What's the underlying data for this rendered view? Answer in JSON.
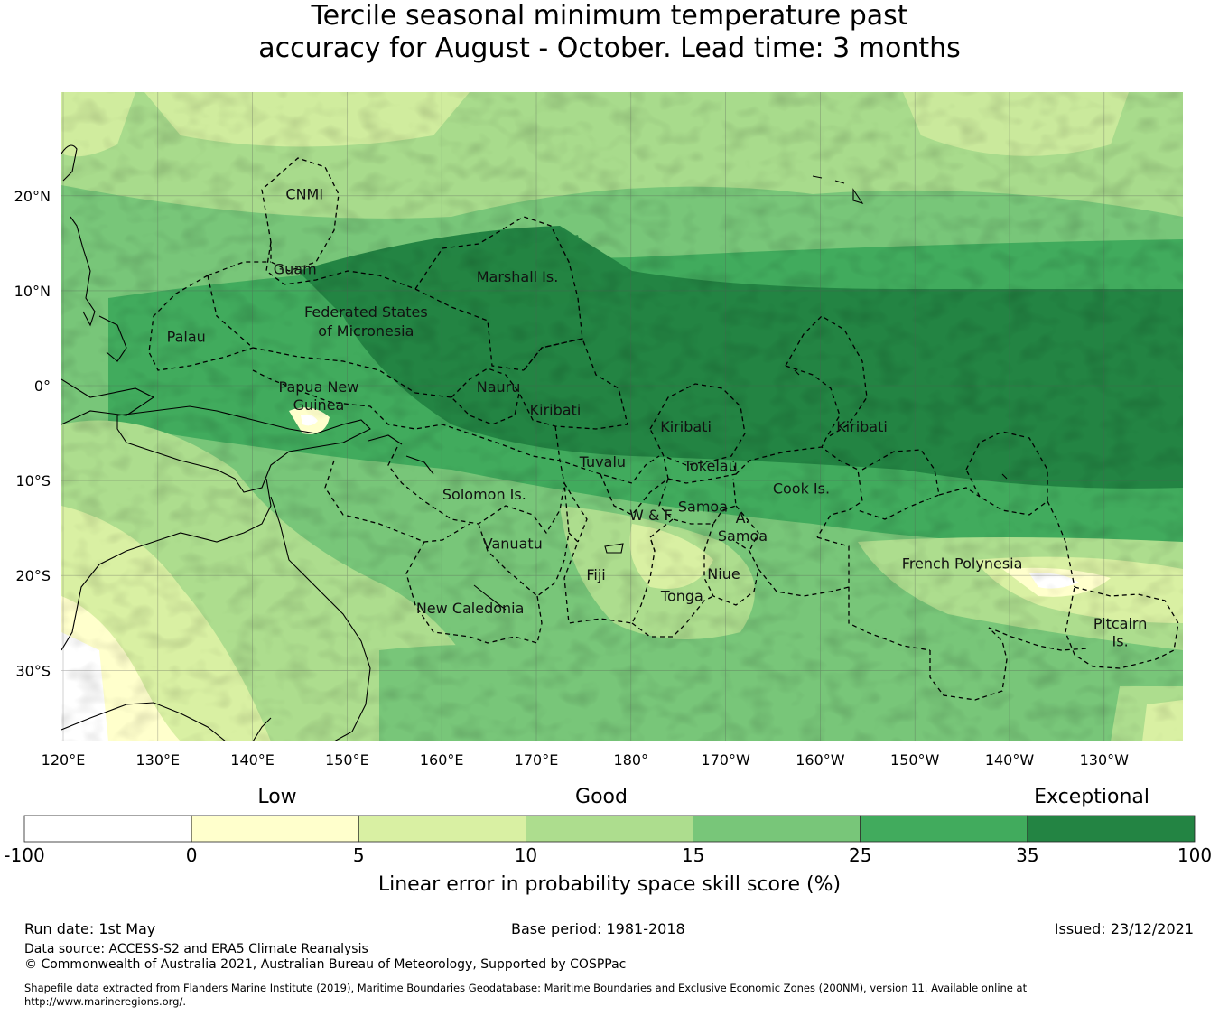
{
  "title": {
    "line1": "Tercile seasonal minimum temperature past",
    "line2": "accuracy for August - October. Lead time: 3 months"
  },
  "map": {
    "lon_ticks": [
      "120°E",
      "130°E",
      "140°E",
      "150°E",
      "160°E",
      "170°E",
      "180°",
      "170°W",
      "160°W",
      "150°W",
      "140°W",
      "130°W"
    ],
    "lat_ticks": [
      "20°N",
      "10°N",
      "0°",
      "10°S",
      "20°S",
      "30°S"
    ],
    "regions": [
      {
        "name": "CNMI",
        "lon": 145.5,
        "lat": 20.2
      },
      {
        "name": "Guam",
        "lon": 144.5,
        "lat": 12.3
      },
      {
        "name": "Marshall Is.",
        "lon": 168.0,
        "lat": 11.5
      },
      {
        "name": "Federated States",
        "lon": 152.0,
        "lat": 7.8
      },
      {
        "name": "of Micronesia",
        "lon": 152.0,
        "lat": 5.8
      },
      {
        "name": "Palau",
        "lon": 133.0,
        "lat": 5.2
      },
      {
        "name": "Papua New",
        "lon": 147.0,
        "lat": -0.1
      },
      {
        "name": "Guinea",
        "lon": 147.0,
        "lat": -2.0
      },
      {
        "name": "Nauru",
        "lon": 166.0,
        "lat": -0.1
      },
      {
        "name": "Kiribati",
        "lon": 172.0,
        "lat": -2.5
      },
      {
        "name": "Kiribati",
        "lon": -174.2,
        "lat": -4.3
      },
      {
        "name": "Kiribati",
        "lon": -155.6,
        "lat": -4.3
      },
      {
        "name": "Tuvalu",
        "lon": 177.0,
        "lat": -8.0
      },
      {
        "name": "Tokelau",
        "lon": -171.6,
        "lat": -8.4
      },
      {
        "name": "Solomon Is.",
        "lon": 164.5,
        "lat": -11.4
      },
      {
        "name": "Cook Is.",
        "lon": -162.0,
        "lat": -10.8
      },
      {
        "name": "Samoa",
        "lon": -172.4,
        "lat": -12.7
      },
      {
        "name": "W & F",
        "lon": -177.9,
        "lat": -13.6
      },
      {
        "name": "A.",
        "lon": -168.2,
        "lat": -13.9
      },
      {
        "name": "Samoa",
        "lon": -168.2,
        "lat": -15.8
      },
      {
        "name": "Vanuatu",
        "lon": 167.5,
        "lat": -16.6
      },
      {
        "name": "French Polynesia",
        "lon": -145.0,
        "lat": -18.7
      },
      {
        "name": "Fiji",
        "lon": 176.3,
        "lat": -19.9
      },
      {
        "name": "Niue",
        "lon": -170.2,
        "lat": -19.8
      },
      {
        "name": "Tonga",
        "lon": -174.6,
        "lat": -22.1
      },
      {
        "name": "New Caledonia",
        "lon": 163.0,
        "lat": -23.4
      },
      {
        "name": "Pitcairn",
        "lon": -128.3,
        "lat": -25.0
      },
      {
        "name": "Is.",
        "lon": -128.3,
        "lat": -26.9
      }
    ]
  },
  "legend": {
    "category_labels": [
      "Low",
      "Good",
      "Exceptional"
    ],
    "boundaries": [
      "-100",
      "0",
      "5",
      "10",
      "15",
      "25",
      "35",
      "100"
    ],
    "colors": [
      "#ffffff",
      "#ffffcc",
      "#d9f0a3",
      "#addd8e",
      "#78c679",
      "#41ab5d",
      "#238443"
    ],
    "label": "Linear error in probability space skill score (%)"
  },
  "footer": {
    "run_date": "Run date: 1st May",
    "base_period": "Base period: 1981-2018",
    "issued": "Issued: 23/12/2021",
    "data_source": "Data source: ACCESS-S2 and ERA5 Climate Reanalysis",
    "copyright": "© Commonwealth of Australia 2021, Australian Bureau of Meteorology, Supported by COSPPac",
    "shapefile_line1": "Shapefile data extracted from Flanders Marine Institute (2019), Maritime Boundaries Geodatabase: Maritime Boundaries and Exclusive Economic Zones (200NM), version 11. Available online at",
    "shapefile_line2": "http://www.marineregions.org/."
  }
}
